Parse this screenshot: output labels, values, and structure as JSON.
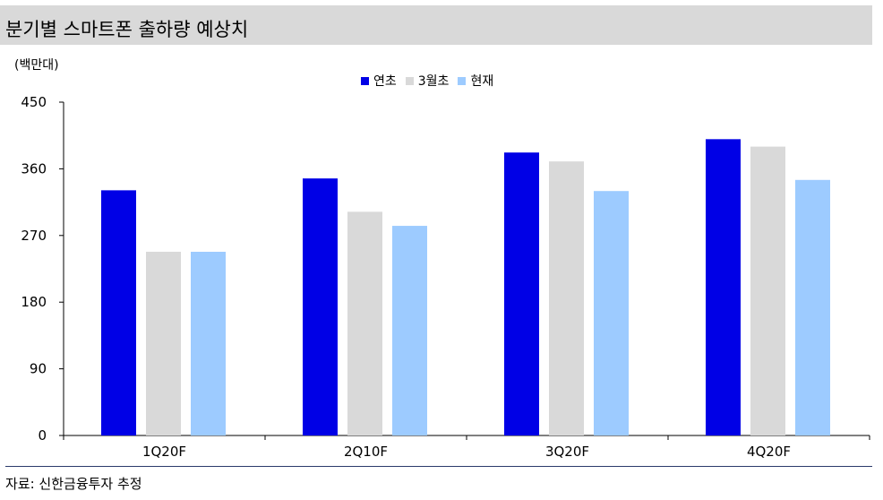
{
  "header": {
    "title": "분기별 스마트폰 출하량 예상치"
  },
  "unit": "(백만대)",
  "source": "자료: 신한금융투자 추정",
  "colors": {
    "연초": "#0000e6",
    "3월초": "#d9d9d9",
    "현재": "#9dcbff"
  },
  "chart_data": {
    "type": "bar",
    "categories": [
      "1Q20F",
      "2Q10F",
      "3Q20F",
      "4Q20F"
    ],
    "series": [
      {
        "name": "연초",
        "values": [
          331,
          347,
          382,
          400
        ]
      },
      {
        "name": "3월초",
        "values": [
          248,
          302,
          370,
          390
        ]
      },
      {
        "name": "현재",
        "values": [
          248,
          283,
          330,
          345
        ]
      }
    ],
    "ylim": [
      0,
      450
    ],
    "yticks": [
      "0",
      "90",
      "180",
      "270",
      "360",
      "450"
    ],
    "ylabel": "(백만대)",
    "legend": "top-center",
    "grid": false
  }
}
